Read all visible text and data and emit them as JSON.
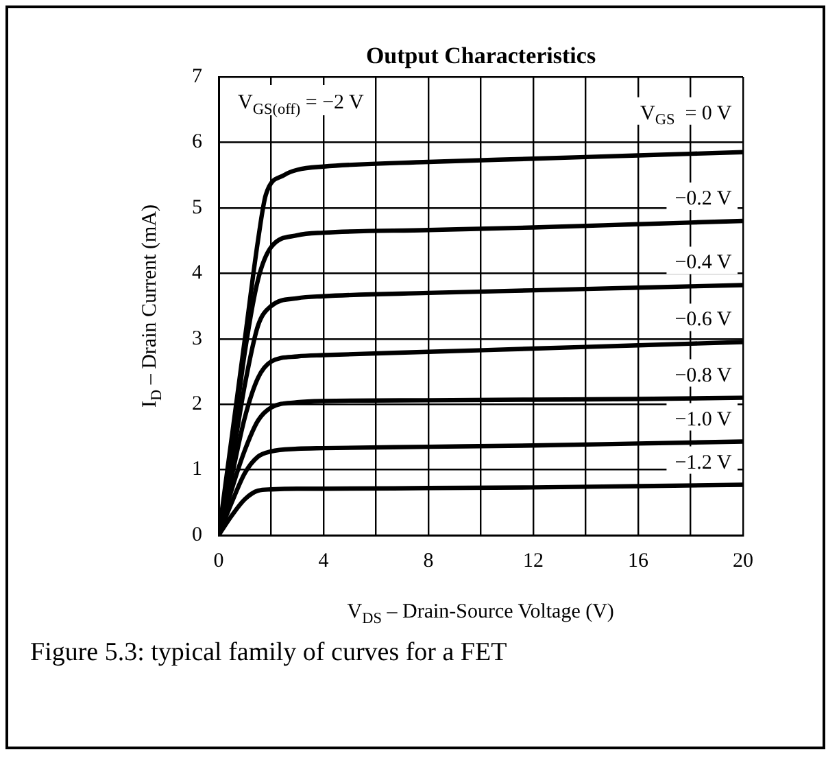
{
  "chart_data": {
    "type": "line",
    "title": "Output Characteristics",
    "xlabel": "V$_{DS}$ – Drain-Source Voltage (V)",
    "ylabel": "I$_{D}$ – Drain Current (mA)",
    "annotations": [
      "V$_{GS(off)}$ = −2 V",
      "Figure 5.3:  typical family of curves for a FET"
    ],
    "x": [
      0,
      0.5,
      1,
      1.5,
      2,
      3,
      4,
      8,
      12,
      16,
      20
    ],
    "series": [
      {
        "name": "V$_{GS}$  = 0 V",
        "color": "#000000",
        "x": [
          0,
          0.5,
          1,
          1.5,
          1.8,
          2.5,
          3,
          4,
          8,
          12,
          16,
          20
        ],
        "values": [
          0,
          1.5,
          3.0,
          4.5,
          5.2,
          5.5,
          5.58,
          5.63,
          5.7,
          5.75,
          5.8,
          5.85
        ]
      },
      {
        "name": "−0.2 V",
        "color": "#000000",
        "values": [
          0,
          1.3,
          2.8,
          3.9,
          4.4,
          4.58,
          4.62,
          4.66,
          4.7,
          4.75,
          4.8
        ]
      },
      {
        "name": "−0.4 V",
        "color": "#000000",
        "values": [
          0,
          1.1,
          2.3,
          3.2,
          3.5,
          3.62,
          3.65,
          3.7,
          3.74,
          3.78,
          3.82
        ]
      },
      {
        "name": "−0.6 V",
        "color": "#000000",
        "values": [
          0,
          0.9,
          1.8,
          2.4,
          2.65,
          2.73,
          2.75,
          2.8,
          2.85,
          2.9,
          2.95
        ]
      },
      {
        "name": "−0.8 V",
        "color": "#000000",
        "values": [
          0,
          0.7,
          1.3,
          1.75,
          1.95,
          2.03,
          2.05,
          2.06,
          2.07,
          2.08,
          2.1
        ]
      },
      {
        "name": "−1.0 V",
        "color": "#000000",
        "values": [
          0,
          0.5,
          0.95,
          1.2,
          1.28,
          1.32,
          1.33,
          1.35,
          1.37,
          1.4,
          1.43
        ]
      },
      {
        "name": "−1.2 V",
        "color": "#000000",
        "values": [
          0,
          0.3,
          0.55,
          0.68,
          0.7,
          0.71,
          0.71,
          0.72,
          0.73,
          0.75,
          0.77
        ]
      }
    ],
    "xlim": [
      0,
      20
    ],
    "xticks": [
      0,
      {
        "value": 2,
        "label": null
      },
      4,
      {
        "value": 6,
        "label": null
      },
      8,
      {
        "value": 10,
        "label": null
      },
      12,
      {
        "value": 14,
        "label": null
      },
      16,
      {
        "value": 18,
        "label": null
      },
      20
    ],
    "ylim": [
      0,
      7
    ],
    "yticks": [
      0,
      1,
      2,
      3,
      4,
      5,
      6,
      7
    ],
    "grid": true,
    "legend": false,
    "marker": "none",
    "line_style": "solid"
  }
}
